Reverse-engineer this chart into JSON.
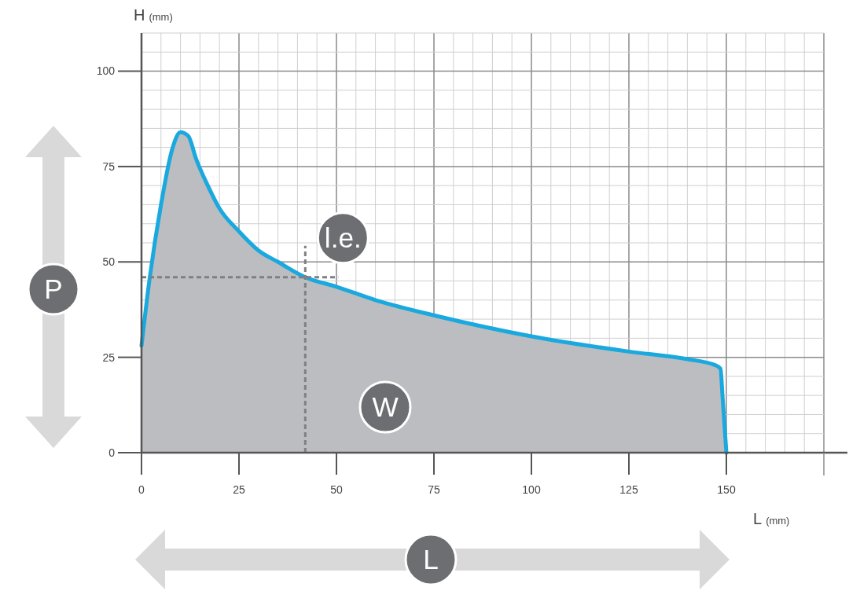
{
  "chart_data": {
    "type": "area",
    "xlabel": "L (mm)",
    "ylabel": "H (mm)",
    "x": [
      0,
      2,
      5,
      8,
      10,
      12,
      14,
      17,
      20,
      25,
      30,
      35,
      42,
      50,
      60,
      75,
      100,
      125,
      140,
      147,
      148.5,
      149,
      150
    ],
    "series": [
      {
        "color": "#1aa9df",
        "values": [
          28,
          45,
          65,
          80,
          84,
          83,
          77,
          70,
          64,
          58,
          53,
          50,
          46,
          43.5,
          40,
          36,
          30.5,
          26.5,
          24.5,
          23,
          22,
          15,
          0
        ]
      }
    ],
    "xlim": [
      0,
      175
    ],
    "ylim": [
      0,
      110
    ],
    "xticks": [
      0,
      25,
      50,
      75,
      100,
      125,
      150
    ],
    "yticks": [
      0,
      25,
      50,
      75,
      100
    ],
    "grid": true,
    "ref_lines": [
      {
        "axis": "x",
        "value": 42,
        "line_style": "dashed",
        "color": "#808080"
      },
      {
        "axis": "y",
        "value": 46,
        "line_style": "dashed",
        "color": "#808080"
      }
    ],
    "annotations": [
      "P",
      "L",
      "W",
      {
        "text": "l.e.",
        "x": 42,
        "y": 46
      }
    ]
  }
}
